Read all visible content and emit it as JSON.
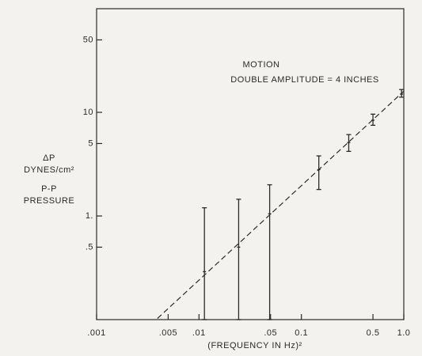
{
  "chart_data": {
    "type": "errorbar",
    "annotations": [
      "MOTION",
      "DOUBLE AMPLITUDE = 4 INCHES"
    ],
    "y_label": [
      "ΔP",
      "DYNES/cm²",
      "P-P",
      "PRESSURE"
    ],
    "x_label": "(FREQUENCY IN Hz)²",
    "log_x": true,
    "log_y": true,
    "xlim": [
      0.001,
      1
    ],
    "ylim": [
      0.1,
      100
    ],
    "xticks": [
      {
        "value": 0.001,
        "label": ".001"
      },
      {
        "value": 0.005,
        "label": ".005"
      },
      {
        "value": 0.01,
        "label": ".01"
      },
      {
        "value": 0.05,
        "label": ".05"
      },
      {
        "value": 0.1,
        "label": "0.1"
      },
      0.5,
      {
        "value": 1,
        "label": "1.0"
      }
    ],
    "yticks": [
      {
        "value": 0.5,
        "label": ".5"
      },
      {
        "value": 1,
        "label": "1."
      },
      5,
      10,
      50
    ],
    "x": [
      0.0113,
      0.0244,
      0.049,
      0.148,
      0.29,
      0.5,
      0.95
    ],
    "values": [
      0.29,
      0.5,
      1.05,
      2.8,
      5.1,
      8.4,
      15
    ],
    "upper": [
      1.2,
      1.45,
      2.0,
      3.8,
      6.1,
      9.6,
      16.6
    ],
    "lower": [
      0.1,
      0.1,
      0.1,
      1.8,
      4.2,
      7.5,
      14
    ],
    "fit_line": {
      "x": [
        0.0034,
        1
      ],
      "values": [
        0.09,
        16
      ]
    },
    "color": "#2a2a2a"
  }
}
